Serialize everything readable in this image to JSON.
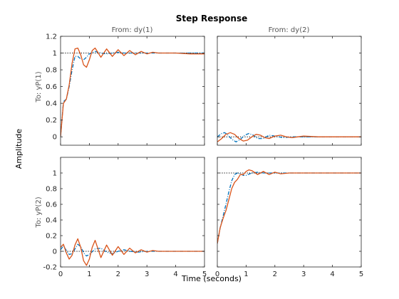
{
  "chart_data": {
    "type": "line",
    "title": "Step Response",
    "xlabel": "Time (seconds)",
    "ylabel": "Amplitude",
    "column_titles": [
      "From: dy(1)",
      "From: dy(2)"
    ],
    "row_titles": [
      "To: yP(1)",
      "To: yP(2)"
    ],
    "xlim": [
      0,
      5
    ],
    "xticks": [
      0,
      1,
      2,
      3,
      4,
      5
    ],
    "rows": [
      {
        "ylim": [
          -0.1,
          1.2
        ],
        "yticks": [
          0,
          0.2,
          0.4,
          0.6,
          0.8,
          1,
          1.2
        ]
      },
      {
        "ylim": [
          -0.2,
          1.2
        ],
        "yticks": [
          -0.2,
          0,
          0.2,
          0.4,
          0.6,
          0.8,
          1
        ]
      }
    ],
    "colors": {
      "blue": "#0072bd",
      "orange": "#d95319",
      "reference": "#000000"
    },
    "panels": [
      {
        "row": 0,
        "col": 0,
        "reference": 1,
        "series": [
          {
            "color": "blue",
            "dashed": true,
            "x": [
              0,
              0.1,
              0.2,
              0.3,
              0.4,
              0.5,
              0.6,
              0.7,
              0.8,
              0.9,
              1.0,
              1.2,
              1.4,
              1.6,
              1.8,
              2.0,
              2.2,
              2.4,
              2.6,
              2.8,
              3.0,
              3.5,
              4.0,
              4.5,
              5.0
            ],
            "y": [
              0,
              0.42,
              0.45,
              0.6,
              0.8,
              0.96,
              0.96,
              0.93,
              0.92,
              0.95,
              0.99,
              1.02,
              1.0,
              0.99,
              1.0,
              1.01,
              1.0,
              1.0,
              1.0,
              1.0,
              1.0,
              1.0,
              1.0,
              1.0,
              1.0
            ]
          },
          {
            "color": "orange",
            "dashed": false,
            "x": [
              0,
              0.1,
              0.2,
              0.3,
              0.4,
              0.5,
              0.6,
              0.7,
              0.8,
              0.9,
              1.0,
              1.1,
              1.2,
              1.4,
              1.6,
              1.8,
              2.0,
              2.2,
              2.4,
              2.6,
              2.8,
              3.0,
              3.2,
              3.4,
              3.6,
              3.8,
              4.0,
              4.5,
              5.0
            ],
            "y": [
              0,
              0.4,
              0.45,
              0.62,
              0.88,
              1.05,
              1.06,
              0.98,
              0.86,
              0.83,
              0.92,
              1.03,
              1.06,
              0.95,
              1.05,
              0.96,
              1.04,
              0.97,
              1.03,
              0.98,
              1.02,
              0.99,
              1.01,
              1.0,
              1.0,
              1.0,
              1.0,
              0.99,
              0.99
            ]
          }
        ]
      },
      {
        "row": 0,
        "col": 1,
        "reference": 0,
        "series": [
          {
            "color": "blue",
            "dashed": true,
            "x": [
              0,
              0.15,
              0.25,
              0.35,
              0.45,
              0.55,
              0.65,
              0.8,
              0.95,
              1.1,
              1.25,
              1.4,
              1.6,
              1.8,
              2.0,
              2.3,
              2.6,
              3.0,
              3.5,
              4.0,
              5.0
            ],
            "y": [
              0,
              0.04,
              0.05,
              0.03,
              -0.01,
              -0.04,
              -0.06,
              -0.03,
              0.02,
              0.04,
              0.02,
              -0.02,
              -0.02,
              0.02,
              0.01,
              -0.01,
              0.0,
              0.0,
              0.0,
              0.0,
              0.0
            ]
          },
          {
            "color": "orange",
            "dashed": false,
            "x": [
              0,
              0.15,
              0.3,
              0.45,
              0.6,
              0.75,
              0.9,
              1.05,
              1.2,
              1.35,
              1.5,
              1.65,
              1.8,
              2.0,
              2.2,
              2.4,
              2.6,
              2.8,
              3.0,
              3.5,
              4.0,
              5.0
            ],
            "y": [
              -0.06,
              -0.02,
              0.03,
              0.05,
              0.03,
              -0.02,
              -0.05,
              -0.04,
              0.0,
              0.03,
              0.02,
              -0.01,
              -0.02,
              0.01,
              0.02,
              0.0,
              -0.01,
              0.0,
              0.01,
              0.0,
              0.0,
              0.0
            ]
          }
        ]
      },
      {
        "row": 1,
        "col": 0,
        "reference": 0,
        "series": [
          {
            "color": "blue",
            "dashed": true,
            "x": [
              0,
              0.1,
              0.2,
              0.3,
              0.4,
              0.5,
              0.6,
              0.7,
              0.8,
              0.9,
              1.0,
              1.2,
              1.4,
              1.6,
              1.8,
              2.0,
              2.2,
              2.4,
              2.7,
              3.0,
              3.5,
              4.0,
              5.0
            ],
            "y": [
              0.02,
              0.07,
              0.01,
              -0.04,
              -0.03,
              0.03,
              0.09,
              0.06,
              -0.02,
              -0.06,
              -0.04,
              0.03,
              0.04,
              -0.01,
              -0.03,
              0.0,
              0.02,
              0.0,
              -0.01,
              0.0,
              0.0,
              0.0,
              0.0
            ]
          },
          {
            "color": "orange",
            "dashed": false,
            "x": [
              0,
              0.1,
              0.2,
              0.3,
              0.4,
              0.5,
              0.6,
              0.7,
              0.8,
              0.9,
              1.0,
              1.1,
              1.2,
              1.4,
              1.6,
              1.8,
              2.0,
              2.2,
              2.4,
              2.6,
              2.8,
              3.0,
              3.2,
              3.4,
              3.6,
              4.0,
              4.5,
              5.0
            ],
            "y": [
              0.05,
              0.09,
              -0.02,
              -0.1,
              -0.05,
              0.08,
              0.16,
              0.05,
              -0.12,
              -0.18,
              -0.1,
              0.05,
              0.14,
              -0.08,
              0.08,
              -0.05,
              0.06,
              -0.04,
              0.04,
              -0.02,
              0.02,
              -0.01,
              0.01,
              0.0,
              0.0,
              0.0,
              0.0,
              0.0
            ]
          }
        ]
      },
      {
        "row": 1,
        "col": 1,
        "reference": 1,
        "series": [
          {
            "color": "blue",
            "dashed": true,
            "x": [
              0,
              0.1,
              0.2,
              0.3,
              0.4,
              0.5,
              0.6,
              0.7,
              0.8,
              0.9,
              1.0,
              1.2,
              1.4,
              1.6,
              1.8,
              2.0,
              2.5,
              3.0,
              4.0,
              5.0
            ],
            "y": [
              0.1,
              0.3,
              0.45,
              0.6,
              0.76,
              0.9,
              0.98,
              1.0,
              0.99,
              0.97,
              0.97,
              1.0,
              1.01,
              1.0,
              1.0,
              1.0,
              1.0,
              1.0,
              1.0,
              1.0
            ]
          },
          {
            "color": "orange",
            "dashed": false,
            "x": [
              0,
              0.1,
              0.2,
              0.3,
              0.4,
              0.5,
              0.6,
              0.7,
              0.8,
              0.9,
              1.0,
              1.1,
              1.2,
              1.4,
              1.6,
              1.8,
              2.0,
              2.2,
              2.5,
              3.0,
              4.0,
              5.0
            ],
            "y": [
              0.1,
              0.3,
              0.42,
              0.52,
              0.66,
              0.8,
              0.88,
              0.92,
              0.98,
              0.98,
              1.02,
              1.04,
              1.03,
              0.98,
              1.02,
              0.98,
              1.01,
              0.99,
              1.0,
              1.0,
              1.0,
              1.0
            ]
          }
        ]
      }
    ]
  }
}
